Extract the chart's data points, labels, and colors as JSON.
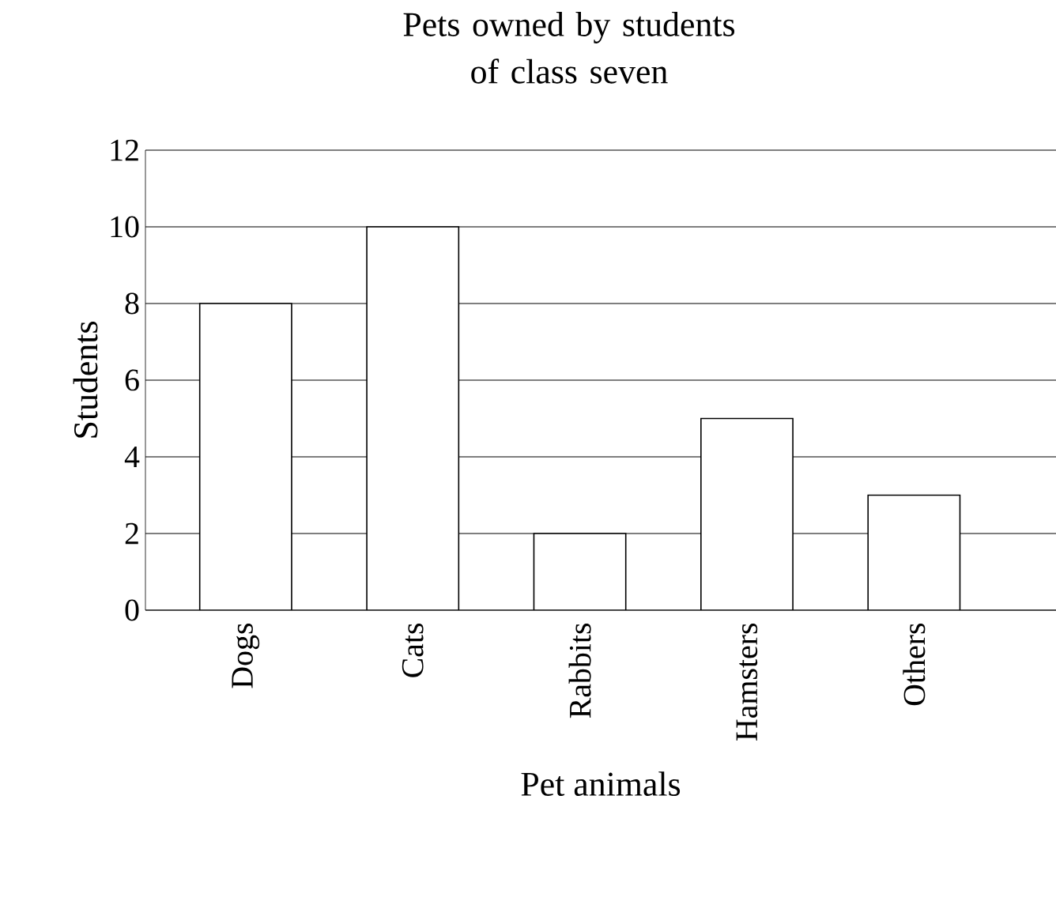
{
  "chart_data": {
    "type": "bar",
    "title": "Pets owned by students\nof class seven",
    "xlabel": "Pet animals",
    "ylabel": "Students",
    "categories": [
      "Dogs",
      "Cats",
      "Rabbits",
      "Hamsters",
      "Others"
    ],
    "values": [
      8,
      10,
      2,
      5,
      3
    ],
    "color": "#ffffff",
    "ylim": [
      0,
      12
    ],
    "yticks": [
      0,
      2,
      4,
      6,
      8,
      10,
      12
    ],
    "grid": "y"
  }
}
